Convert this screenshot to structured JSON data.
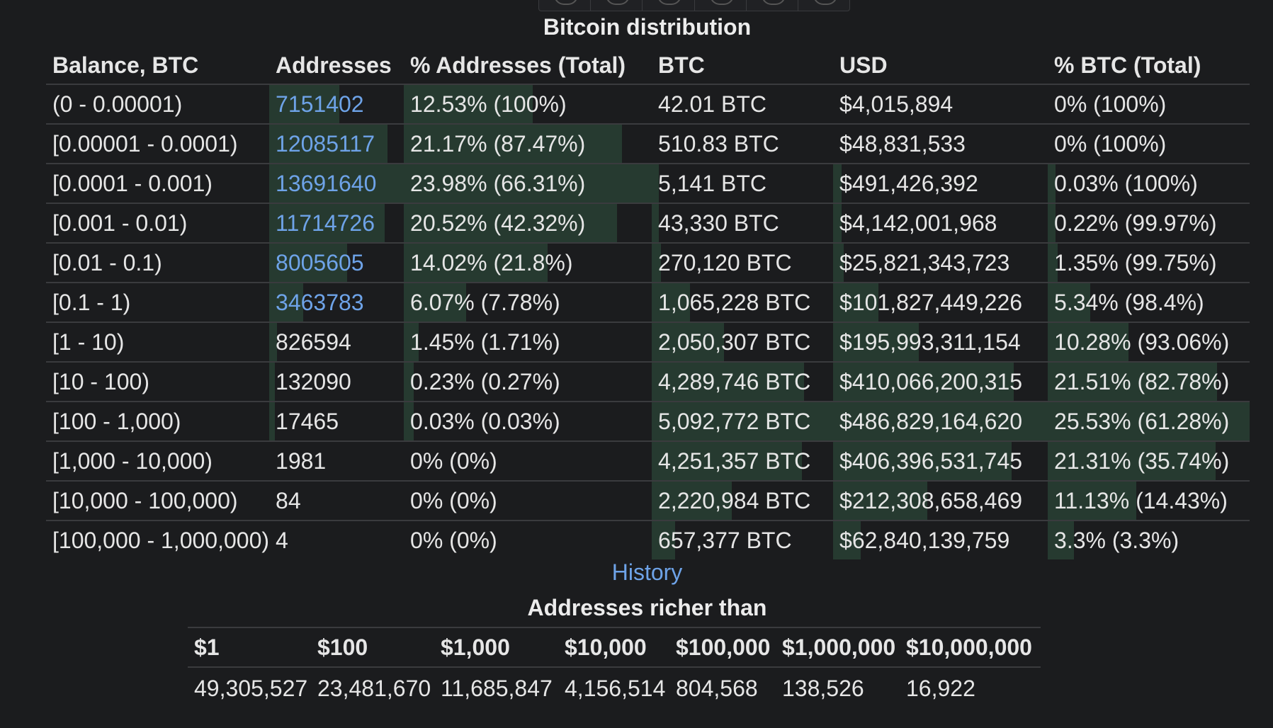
{
  "distribution": {
    "title": "Bitcoin distribution",
    "columns": [
      "Balance, BTC",
      "Addresses",
      "% Addresses (Total)",
      "BTC",
      "USD",
      "% BTC (Total)"
    ],
    "rows": [
      {
        "balance": "(0 - 0.00001)",
        "addresses": "7151402",
        "addr_link": true,
        "pct_addr": "12.53% (100%)",
        "btc": "42.01 BTC",
        "usd": "$4,015,894",
        "pct_btc": "0% (100%)",
        "pct_addr_value": 12.53,
        "pct_btc_value": 0
      },
      {
        "balance": "[0.00001 - 0.0001)",
        "addresses": "12085117",
        "addr_link": true,
        "pct_addr": "21.17% (87.47%)",
        "btc": "510.83 BTC",
        "usd": "$48,831,533",
        "pct_btc": "0% (100%)",
        "pct_addr_value": 21.17,
        "pct_btc_value": 0
      },
      {
        "balance": "[0.0001 - 0.001)",
        "addresses": "13691640",
        "addr_link": true,
        "pct_addr": "23.98% (66.31%)",
        "btc": "5,141 BTC",
        "usd": "$491,426,392",
        "pct_btc": "0.03% (100%)",
        "pct_addr_value": 23.98,
        "pct_btc_value": 0.03
      },
      {
        "balance": "[0.001 - 0.01)",
        "addresses": "11714726",
        "addr_link": true,
        "pct_addr": "20.52% (42.32%)",
        "btc": "43,330 BTC",
        "usd": "$4,142,001,968",
        "pct_btc": "0.22% (99.97%)",
        "pct_addr_value": 20.52,
        "pct_btc_value": 0.22
      },
      {
        "balance": "[0.01 - 0.1)",
        "addresses": "8005605",
        "addr_link": true,
        "pct_addr": "14.02% (21.8%)",
        "btc": "270,120 BTC",
        "usd": "$25,821,343,723",
        "pct_btc": "1.35% (99.75%)",
        "pct_addr_value": 14.02,
        "pct_btc_value": 1.35
      },
      {
        "balance": "[0.1 - 1)",
        "addresses": "3463783",
        "addr_link": true,
        "pct_addr": "6.07% (7.78%)",
        "btc": "1,065,228 BTC",
        "usd": "$101,827,449,226",
        "pct_btc": "5.34% (98.4%)",
        "pct_addr_value": 6.07,
        "pct_btc_value": 5.34
      },
      {
        "balance": "[1 - 10)",
        "addresses": "826594",
        "addr_link": false,
        "pct_addr": "1.45% (1.71%)",
        "btc": "2,050,307 BTC",
        "usd": "$195,993,311,154",
        "pct_btc": "10.28% (93.06%)",
        "pct_addr_value": 1.45,
        "pct_btc_value": 10.28
      },
      {
        "balance": "[10 - 100)",
        "addresses": "132090",
        "addr_link": false,
        "pct_addr": "0.23% (0.27%)",
        "btc": "4,289,746 BTC",
        "usd": "$410,066,200,315",
        "pct_btc": "21.51% (82.78%)",
        "pct_addr_value": 0.23,
        "pct_btc_value": 21.51
      },
      {
        "balance": "[100 - 1,000)",
        "addresses": "17465",
        "addr_link": false,
        "pct_addr": "0.03% (0.03%)",
        "btc": "5,092,772 BTC",
        "usd": "$486,829,164,620",
        "pct_btc": "25.53% (61.28%)",
        "pct_addr_value": 0.03,
        "pct_btc_value": 25.53
      },
      {
        "balance": "[1,000 - 10,000)",
        "addresses": "1981",
        "addr_link": false,
        "pct_addr": "0% (0%)",
        "btc": "4,251,357 BTC",
        "usd": "$406,396,531,745",
        "pct_btc": "21.31% (35.74%)",
        "pct_addr_value": 0,
        "pct_btc_value": 21.31
      },
      {
        "balance": "[10,000 - 100,000)",
        "addresses": "84",
        "addr_link": false,
        "pct_addr": "0% (0%)",
        "btc": "2,220,984 BTC",
        "usd": "$212,308,658,469",
        "pct_btc": "11.13% (14.43%)",
        "pct_addr_value": 0,
        "pct_btc_value": 11.13
      },
      {
        "balance": "[100,000 - 1,000,000)",
        "addresses": "4",
        "addr_link": false,
        "pct_addr": "0% (0%)",
        "btc": "657,377 BTC",
        "usd": "$62,840,139,759",
        "pct_btc": "3.3% (3.3%)",
        "pct_addr_value": 0,
        "pct_btc_value": 3.3
      }
    ]
  },
  "history_link": "History",
  "richer": {
    "title": "Addresses richer than",
    "headers": [
      "$1",
      "$100",
      "$1,000",
      "$10,000",
      "$100,000",
      "$1,000,000",
      "$10,000,000"
    ],
    "values": [
      "49,305,527",
      "23,481,670",
      "11,685,847",
      "4,156,514",
      "804,568",
      "138,526",
      "16,922"
    ]
  },
  "colors": {
    "background": "#1b1c1e",
    "link": "#6ea3e8",
    "bar": "#263a30"
  }
}
